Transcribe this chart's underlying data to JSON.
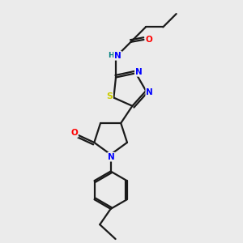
{
  "bg_color": "#ebebeb",
  "bond_color": "#1a1a1a",
  "atom_colors": {
    "N": "#0000ff",
    "O": "#ff0000",
    "S": "#cccc00",
    "H": "#008080",
    "C": "#1a1a1a"
  }
}
